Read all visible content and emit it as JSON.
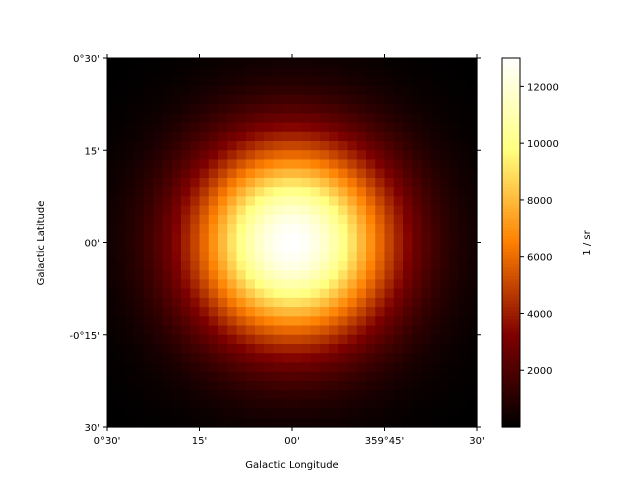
{
  "chart_data": {
    "type": "heatmap",
    "title": "",
    "xlabel": "Galactic Longitude",
    "ylabel": "Galactic Latitude",
    "colorbar_label": "1 / sr",
    "colormap": "afmhot",
    "x_ticks": [
      "0°30'",
      "15'",
      "00'",
      "359°45'",
      "30'"
    ],
    "y_ticks": [
      "0°30'",
      "15'",
      "00'",
      "-0°15'",
      "30'"
    ],
    "colorbar_ticks": [
      2000,
      4000,
      6000,
      8000,
      10000,
      12000
    ],
    "colorbar_range": [
      0,
      13000
    ],
    "grid": {
      "rows": 40,
      "cols": 40,
      "description": "single 2D Gaussian centered at l=0, b=0",
      "center_value": 13000,
      "sigma_fraction_of_width": 0.19
    }
  }
}
